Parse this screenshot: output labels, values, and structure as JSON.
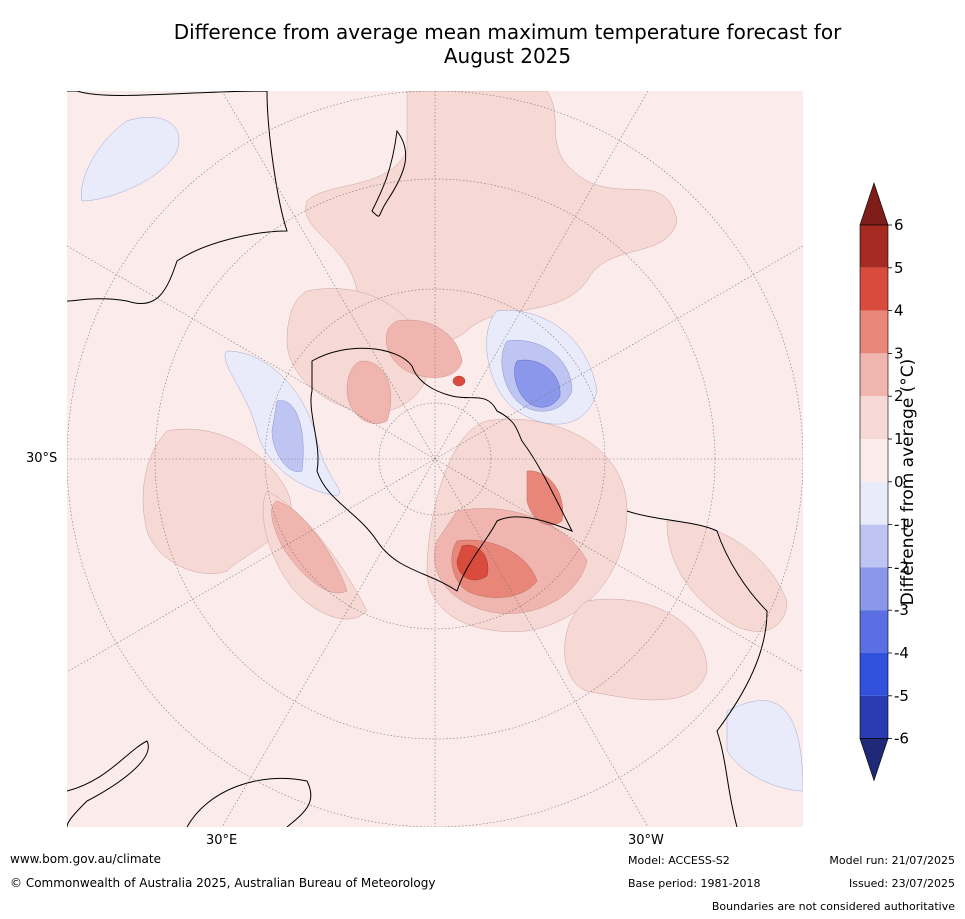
{
  "title_line1": "Difference from average mean maximum temperature forecast for",
  "title_line2": "August 2025",
  "axis_labels": {
    "lat": "30°S",
    "lon_left": "30°E",
    "lon_right": "30°W"
  },
  "colorbar": {
    "title": "Difference from average (°C)",
    "ticks": [
      "6",
      "5",
      "4",
      "3",
      "2",
      "1",
      "0",
      "-1",
      "-2",
      "-3",
      "-4",
      "-5",
      "-6"
    ],
    "colors": [
      "#7f1d1a",
      "#a52a22",
      "#d94c3d",
      "#e8867a",
      "#f0b5ae",
      "#f6d8d4",
      "#fbeceb",
      "#e9ebfa",
      "#bfc5f2",
      "#8a97ea",
      "#5b6fe2",
      "#3150dc",
      "#2a3cb0",
      "#1e2a78"
    ]
  },
  "footer": {
    "url": "www.bom.gov.au/climate",
    "copyright": "© Commonwealth of Australia 2025, Australian Bureau of Meteorology",
    "model": "Model: ACCESS-S2",
    "base_period": "Base period: 1981-2018",
    "model_run": "Model run: 21/07/2025",
    "issued": "Issued: 23/07/2025",
    "disclaimer": "Boundaries are not considered authoritative"
  }
}
